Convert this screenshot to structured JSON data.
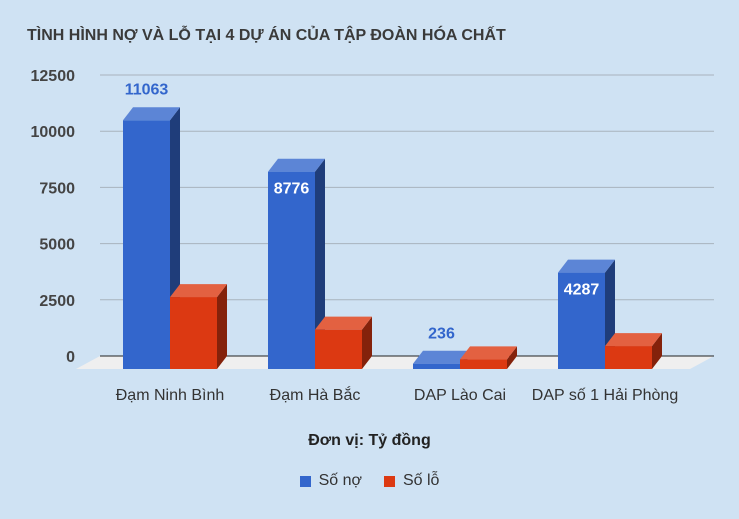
{
  "chart_data": {
    "type": "bar",
    "title": "TÌNH HÌNH NỢ VÀ LỖ TẠI 4 DỰ ÁN CỦA TẬP ĐOÀN HÓA CHẤT",
    "categories": [
      "Đạm Ninh Bình",
      "Đạm Hà Bắc",
      "DAP Lào Cai",
      "DAP số 1 Hải Phòng"
    ],
    "series": [
      {
        "name": "Số nợ",
        "values": [
          11063,
          8776,
          236,
          4287
        ],
        "color": "#3366cc",
        "labels": [
          "11063",
          "8776",
          "236",
          "4287"
        ]
      },
      {
        "name": "Số lỗ",
        "values": [
          3200,
          1750,
          430,
          1020
        ],
        "color": "#dc3912"
      }
    ],
    "ylim": [
      0,
      12500
    ],
    "yticks": [
      "0",
      "2500",
      "5000",
      "7500",
      "10000",
      "12500"
    ],
    "xlabel": "Đơn vị: Tỷ đồng",
    "grid": true,
    "legend": "bottom",
    "style": "3d"
  }
}
